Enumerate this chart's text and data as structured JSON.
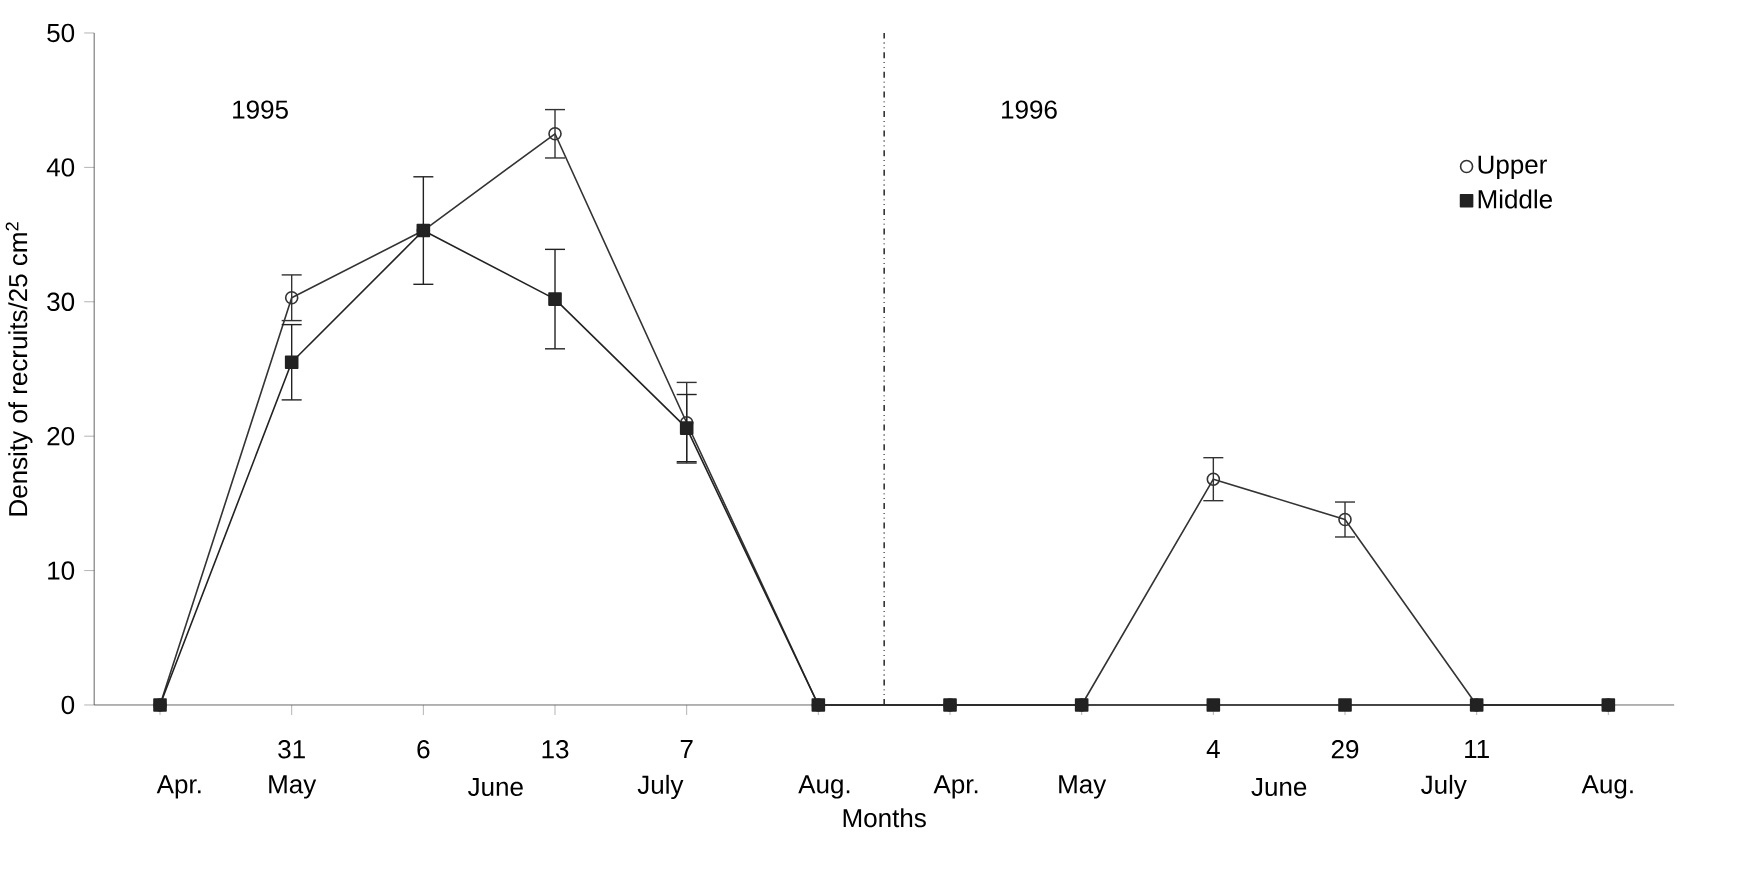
{
  "chart_data": {
    "type": "line",
    "xlabel": "Months",
    "ylabel": "Density of recruits/25 cm$^{2}$",
    "categories": [
      null,
      "31",
      "6",
      "13",
      "7",
      null,
      null,
      null,
      "4",
      "29",
      "11",
      null
    ],
    "series": [
      {
        "name": "Upper",
        "color": "#333333",
        "marker": "circle",
        "values": [
          0,
          30.3,
          35.3,
          42.5,
          21,
          0,
          0,
          0,
          16.8,
          13.8,
          0,
          0
        ],
        "errors": [
          null,
          1.7,
          null,
          1.8,
          3,
          null,
          null,
          null,
          1.6,
          1.3,
          null,
          null
        ]
      },
      {
        "name": "Middle",
        "color": "#222222",
        "marker": "square",
        "values": [
          0,
          25.5,
          35.3,
          30.2,
          20.6,
          0,
          0,
          0,
          0,
          0,
          0,
          0
        ],
        "errors": [
          null,
          2.8,
          4,
          3.7,
          2.5,
          null,
          null,
          null,
          null,
          null,
          null,
          null
        ]
      }
    ],
    "ylim": [
      0,
      50
    ],
    "yticks": [
      0,
      10,
      20,
      30,
      40,
      50
    ],
    "annotations": [
      "1995",
      "1996",
      "Apr.",
      "May",
      "June",
      "July",
      "Aug.",
      "Apr.",
      "May",
      "June",
      "July",
      "Aug."
    ],
    "legend": "top right",
    "grid": false,
    "line_style": "solid"
  }
}
